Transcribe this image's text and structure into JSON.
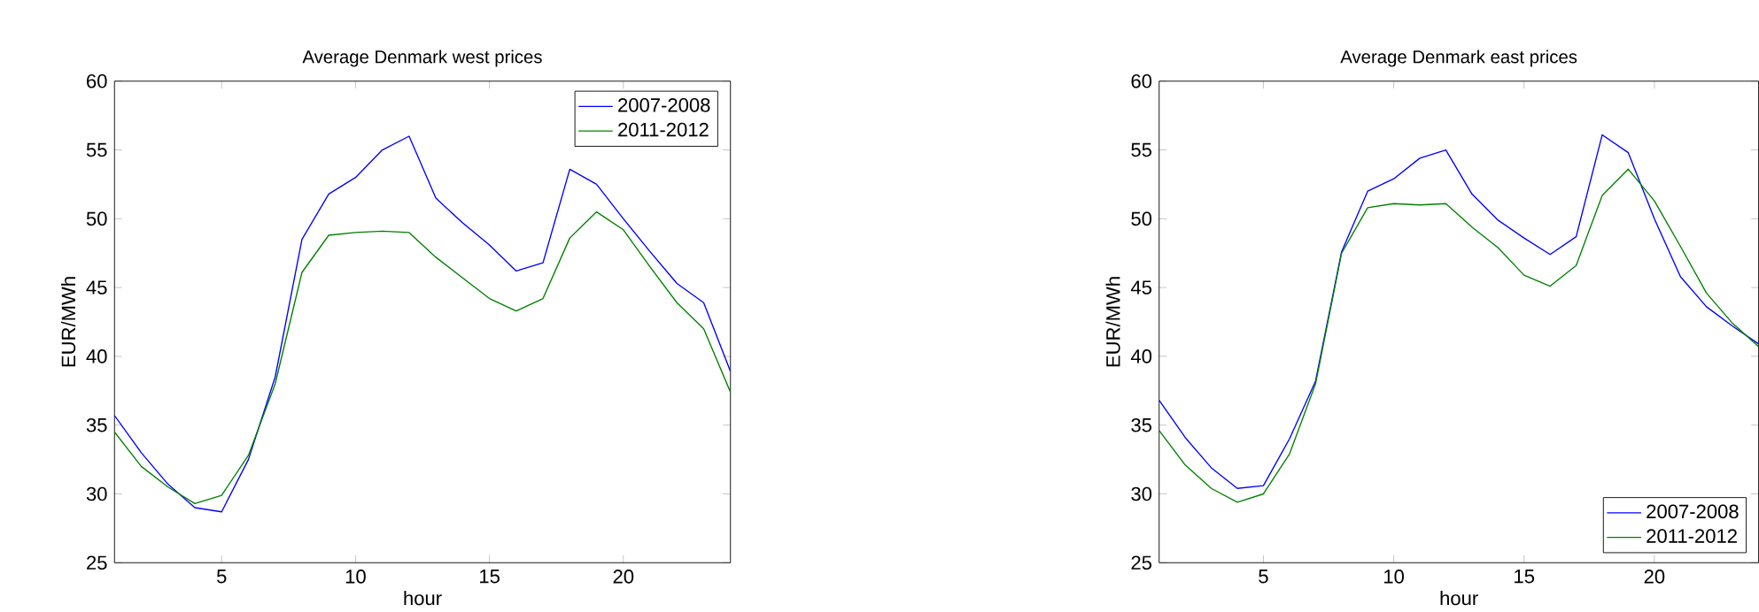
{
  "chart_data": [
    {
      "type": "line",
      "title": "Average Denmark west prices",
      "xlabel": "hour",
      "ylabel": "EUR/MWh",
      "x": [
        1,
        2,
        3,
        4,
        5,
        6,
        7,
        8,
        9,
        10,
        11,
        12,
        13,
        14,
        15,
        16,
        17,
        18,
        19,
        20,
        21,
        22,
        23,
        24
      ],
      "xlim": [
        1,
        24
      ],
      "ylim": [
        25,
        60
      ],
      "xticks": [
        5,
        10,
        15,
        20
      ],
      "yticks": [
        25,
        30,
        35,
        40,
        45,
        50,
        55,
        60
      ],
      "legend": "top right",
      "series": [
        {
          "name": "2007-2008",
          "color": "#0000ff",
          "values": [
            35.7,
            33.0,
            30.7,
            29.0,
            28.7,
            32.5,
            38.5,
            48.5,
            51.8,
            53.0,
            55.0,
            56.0,
            51.5,
            49.7,
            48.1,
            46.2,
            46.8,
            53.6,
            52.5,
            50.0,
            47.6,
            45.3,
            43.9,
            38.9
          ]
        },
        {
          "name": "2011-2012",
          "color": "#008000",
          "values": [
            34.5,
            32.0,
            30.5,
            29.3,
            29.9,
            32.8,
            38.0,
            46.1,
            48.8,
            49.0,
            49.1,
            49.0,
            47.2,
            45.7,
            44.2,
            43.3,
            44.2,
            48.6,
            50.5,
            49.2,
            46.5,
            43.9,
            42.0,
            37.4
          ]
        }
      ]
    },
    {
      "type": "line",
      "title": "Average Denmark east prices",
      "xlabel": "hour",
      "ylabel": "EUR/MWh",
      "x": [
        1,
        2,
        3,
        4,
        5,
        6,
        7,
        8,
        9,
        10,
        11,
        12,
        13,
        14,
        15,
        16,
        17,
        18,
        19,
        20,
        21,
        22,
        23,
        24
      ],
      "xlim": [
        1,
        24
      ],
      "ylim": [
        25,
        60
      ],
      "xticks": [
        5,
        10,
        15,
        20
      ],
      "yticks": [
        25,
        30,
        35,
        40,
        45,
        50,
        55,
        60
      ],
      "legend": "bottom right",
      "series": [
        {
          "name": "2007-2008",
          "color": "#0000ff",
          "values": [
            36.8,
            34.1,
            31.9,
            30.4,
            30.6,
            34.0,
            38.2,
            47.6,
            52.0,
            52.9,
            54.4,
            55.0,
            51.8,
            49.9,
            48.6,
            47.4,
            48.7,
            56.1,
            54.8,
            50.0,
            45.8,
            43.6,
            42.2,
            40.9
          ]
        },
        {
          "name": "2011-2012",
          "color": "#008000",
          "values": [
            34.6,
            32.1,
            30.4,
            29.4,
            30.0,
            32.9,
            38.0,
            47.5,
            50.8,
            51.1,
            51.0,
            51.1,
            49.4,
            47.9,
            45.9,
            45.1,
            46.6,
            51.7,
            53.6,
            51.3,
            48.0,
            44.6,
            42.4,
            40.7
          ]
        }
      ]
    }
  ]
}
